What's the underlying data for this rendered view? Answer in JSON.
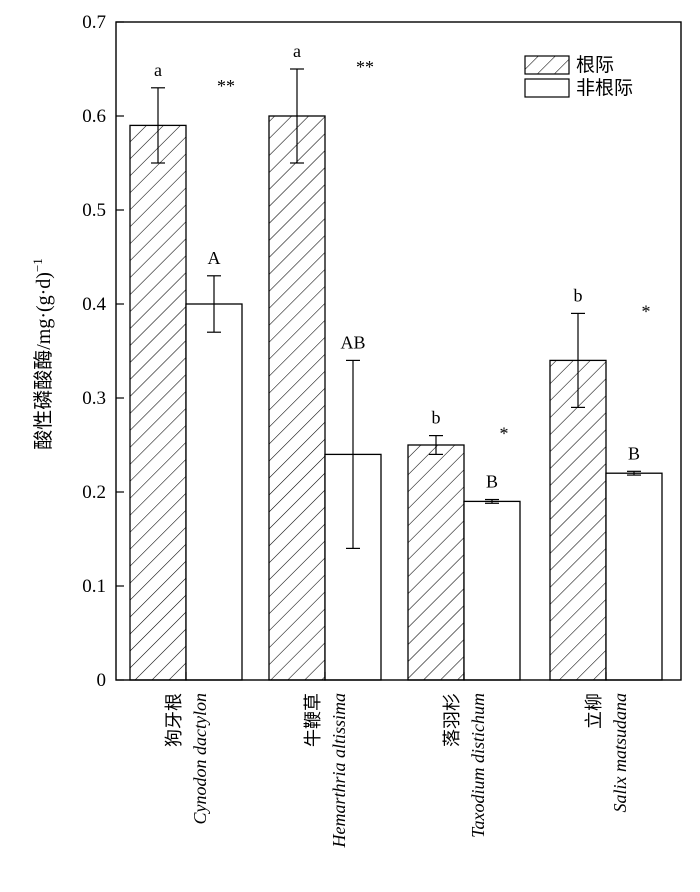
{
  "chart_data": {
    "type": "bar",
    "ylabel": "酸性磷酸酶/mg·(g·d)",
    "ylabel_sup": "−1",
    "ylim": [
      0,
      0.7
    ],
    "yticks": [
      0,
      0.1,
      0.2,
      0.3,
      0.4,
      0.5,
      0.6,
      0.7
    ],
    "ytick_labels": [
      "0",
      "0.1",
      "0.2",
      "0.3",
      "0.4",
      "0.5",
      "0.6",
      "0.7"
    ],
    "categories": [
      {
        "cn": "狗牙根",
        "latin": "Cynodon dactylon"
      },
      {
        "cn": "牛鞭草",
        "latin": "Hemarthria altissima"
      },
      {
        "cn": "落羽杉",
        "latin": "Taxodium distichum"
      },
      {
        "cn": "立柳",
        "latin": "Salix matsudana"
      }
    ],
    "series": [
      {
        "name": "根际",
        "pattern": "hatched",
        "values": [
          0.59,
          0.6,
          0.25,
          0.34
        ],
        "errors": [
          0.04,
          0.05,
          0.01,
          0.05
        ],
        "letters": [
          "a",
          "a",
          "b",
          "b"
        ]
      },
      {
        "name": "非根际",
        "pattern": "plain",
        "values": [
          0.4,
          0.24,
          0.19,
          0.22
        ],
        "errors": [
          0.03,
          0.1,
          0.002,
          0.002
        ],
        "letters": [
          "A",
          "AB",
          "B",
          "B"
        ]
      }
    ],
    "significance": [
      "**",
      "**",
      "*",
      "*"
    ],
    "legend_position": "top-right",
    "grid": false
  }
}
